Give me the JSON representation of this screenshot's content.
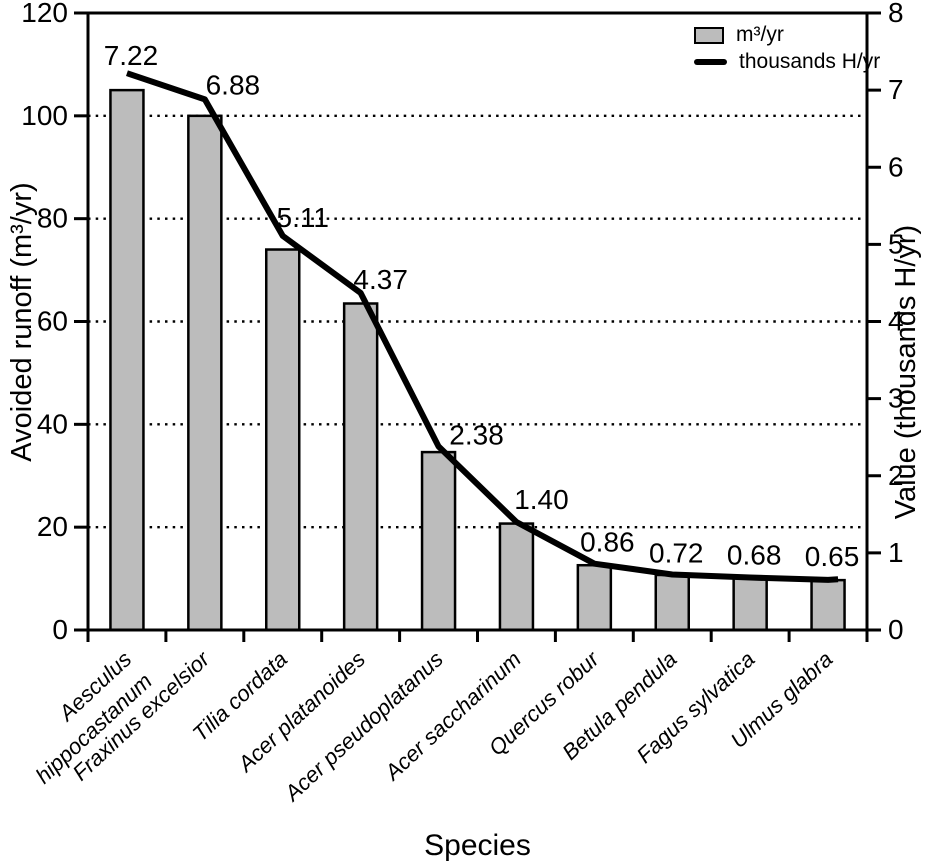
{
  "chart_data": {
    "type": "bar",
    "description": "Bar chart of avoided runoff per tree species with overlaid line of value in thousands H/yr",
    "categories": [
      [
        "Aesculus",
        "hippocastanum"
      ],
      [
        "Fraxinus excelsior"
      ],
      [
        "Tilia cordata"
      ],
      [
        "Acer platanoides"
      ],
      [
        "Acer pseudoplatanus"
      ],
      [
        "Acer saccharinum"
      ],
      [
        "Quercus robur"
      ],
      [
        "Betula pendula"
      ],
      [
        "Fagus sylvatica"
      ],
      [
        "Ulmus glabra"
      ]
    ],
    "series": [
      {
        "name": "m³/yr",
        "type": "bar",
        "axis": "left",
        "color": "#bcbcbc",
        "border_color": "#000000",
        "values": [
          105,
          100,
          74,
          63.5,
          34.6,
          20.7,
          12.6,
          10.7,
          10.1,
          9.7
        ]
      },
      {
        "name": "thousands H/yr",
        "type": "line",
        "axis": "right",
        "color": "#000000",
        "values": [
          7.22,
          6.88,
          5.11,
          4.37,
          2.38,
          1.4,
          0.86,
          0.72,
          0.68,
          0.65
        ],
        "point_labels": [
          "7.22",
          "6.88",
          "5.11",
          "4.37",
          "2.38",
          "1.40",
          "0.86",
          "0.72",
          "0.68",
          "0.65"
        ]
      }
    ],
    "x_axis": {
      "label": "Species"
    },
    "left_axis": {
      "label": "Avoided runoff (m³/yr)",
      "min": 0,
      "max": 120,
      "ticks": [
        0,
        20,
        40,
        60,
        80,
        100,
        120
      ],
      "gridlines": [
        20,
        40,
        60,
        80,
        100
      ]
    },
    "right_axis": {
      "label": "Value (thousands H/yr)",
      "min": 0,
      "max": 8,
      "ticks": [
        0,
        1,
        2,
        3,
        4,
        5,
        6,
        7,
        8
      ]
    },
    "grid": "dotted horizontal",
    "legend": {
      "position": "top-right",
      "items": [
        {
          "label": "m³/yr",
          "marker": "box"
        },
        {
          "label": "thousands H/yr",
          "marker": "line"
        }
      ]
    }
  }
}
